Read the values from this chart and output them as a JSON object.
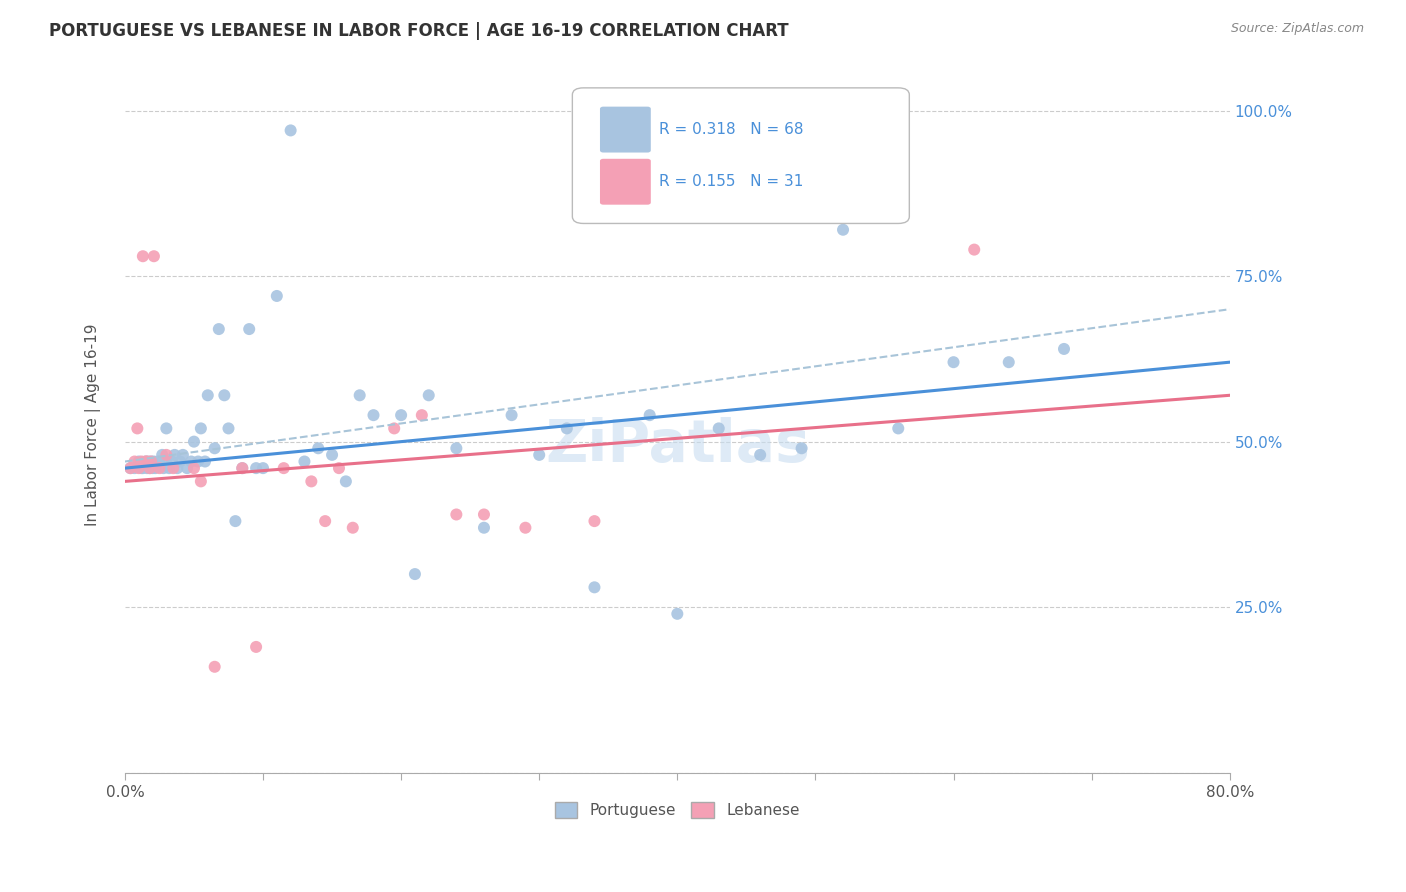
{
  "title": "PORTUGUESE VS LEBANESE IN LABOR FORCE | AGE 16-19 CORRELATION CHART",
  "source": "Source: ZipAtlas.com",
  "ylabel": "In Labor Force | Age 16-19",
  "xlim": [
    0.0,
    0.8
  ],
  "ylim": [
    0.0,
    1.05
  ],
  "x_ticks": [
    0.0,
    0.1,
    0.2,
    0.3,
    0.4,
    0.5,
    0.6,
    0.7,
    0.8
  ],
  "y_ticks": [
    0.0,
    0.25,
    0.5,
    0.75,
    1.0
  ],
  "y_tick_labels": [
    "",
    "25.0%",
    "50.0%",
    "75.0%",
    "100.0%"
  ],
  "portuguese_color": "#a8c4e0",
  "lebanese_color": "#f4a0b5",
  "trendline_portuguese_color": "#4a90d9",
  "trendline_lebanese_color": "#e8708a",
  "trendline_dashed_color": "#a8c4d8",
  "watermark": "ZiPatlas",
  "portuguese_x": [
    0.004,
    0.007,
    0.01,
    0.012,
    0.013,
    0.015,
    0.016,
    0.017,
    0.018,
    0.019,
    0.02,
    0.021,
    0.022,
    0.024,
    0.025,
    0.027,
    0.028,
    0.03,
    0.03,
    0.032,
    0.034,
    0.036,
    0.038,
    0.04,
    0.042,
    0.045,
    0.048,
    0.05,
    0.053,
    0.055,
    0.058,
    0.06,
    0.065,
    0.068,
    0.072,
    0.075,
    0.08,
    0.085,
    0.09,
    0.095,
    0.1,
    0.11,
    0.12,
    0.13,
    0.14,
    0.15,
    0.16,
    0.17,
    0.18,
    0.2,
    0.21,
    0.22,
    0.24,
    0.26,
    0.28,
    0.3,
    0.32,
    0.34,
    0.38,
    0.4,
    0.43,
    0.46,
    0.49,
    0.52,
    0.56,
    0.6,
    0.64,
    0.68
  ],
  "portuguese_y": [
    0.46,
    0.46,
    0.47,
    0.46,
    0.46,
    0.47,
    0.46,
    0.47,
    0.46,
    0.47,
    0.46,
    0.47,
    0.46,
    0.47,
    0.47,
    0.48,
    0.46,
    0.47,
    0.52,
    0.46,
    0.47,
    0.48,
    0.46,
    0.47,
    0.48,
    0.46,
    0.47,
    0.5,
    0.47,
    0.52,
    0.47,
    0.57,
    0.49,
    0.67,
    0.57,
    0.52,
    0.38,
    0.46,
    0.67,
    0.46,
    0.46,
    0.72,
    0.97,
    0.47,
    0.49,
    0.48,
    0.44,
    0.57,
    0.54,
    0.54,
    0.3,
    0.57,
    0.49,
    0.37,
    0.54,
    0.48,
    0.52,
    0.28,
    0.54,
    0.24,
    0.52,
    0.48,
    0.49,
    0.82,
    0.52,
    0.62,
    0.62,
    0.64
  ],
  "lebanese_x": [
    0.004,
    0.007,
    0.009,
    0.01,
    0.012,
    0.013,
    0.015,
    0.016,
    0.018,
    0.019,
    0.021,
    0.025,
    0.03,
    0.035,
    0.05,
    0.055,
    0.065,
    0.085,
    0.095,
    0.115,
    0.135,
    0.145,
    0.155,
    0.165,
    0.195,
    0.215,
    0.24,
    0.26,
    0.29,
    0.34,
    0.615
  ],
  "lebanese_y": [
    0.46,
    0.47,
    0.52,
    0.46,
    0.47,
    0.78,
    0.47,
    0.47,
    0.46,
    0.47,
    0.78,
    0.46,
    0.48,
    0.46,
    0.46,
    0.44,
    0.16,
    0.46,
    0.19,
    0.46,
    0.44,
    0.38,
    0.46,
    0.37,
    0.52,
    0.54,
    0.39,
    0.39,
    0.37,
    0.38,
    0.79
  ]
}
